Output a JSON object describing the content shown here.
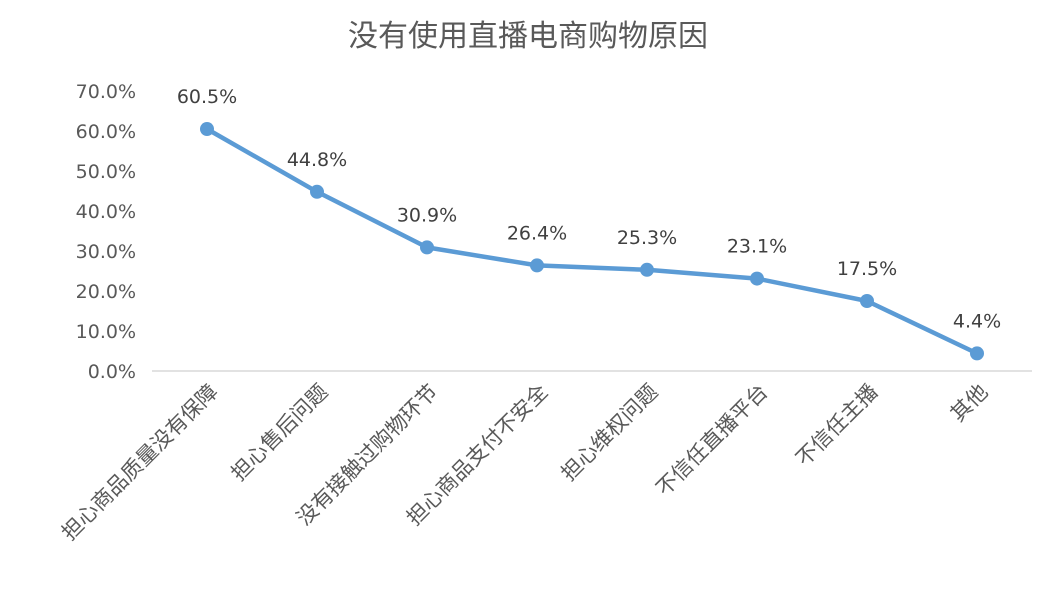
{
  "chart_data": {
    "type": "line",
    "title": "没有使用直播电商购物原因",
    "categories": [
      "担心商品质量没有保障",
      "担心售后问题",
      "没有接触过购物环节",
      "担心商品支付不安全",
      "担心维权问题",
      "不信任直播平台",
      "不信任主播",
      "其他"
    ],
    "values": [
      60.5,
      44.8,
      30.9,
      26.4,
      25.3,
      23.1,
      17.5,
      4.4
    ],
    "data_labels": [
      "60.5%",
      "44.8%",
      "30.9%",
      "26.4%",
      "25.3%",
      "23.1%",
      "17.5%",
      "4.4%"
    ],
    "ylim": [
      0,
      70
    ],
    "yticks": [
      "0.0%",
      "10.0%",
      "20.0%",
      "30.0%",
      "40.0%",
      "50.0%",
      "60.0%",
      "70.0%"
    ],
    "xlabel": "",
    "ylabel": "",
    "grid": false,
    "legend": "none",
    "line_color": "#5b9bd5",
    "axis_color": "#d9d9d9"
  }
}
